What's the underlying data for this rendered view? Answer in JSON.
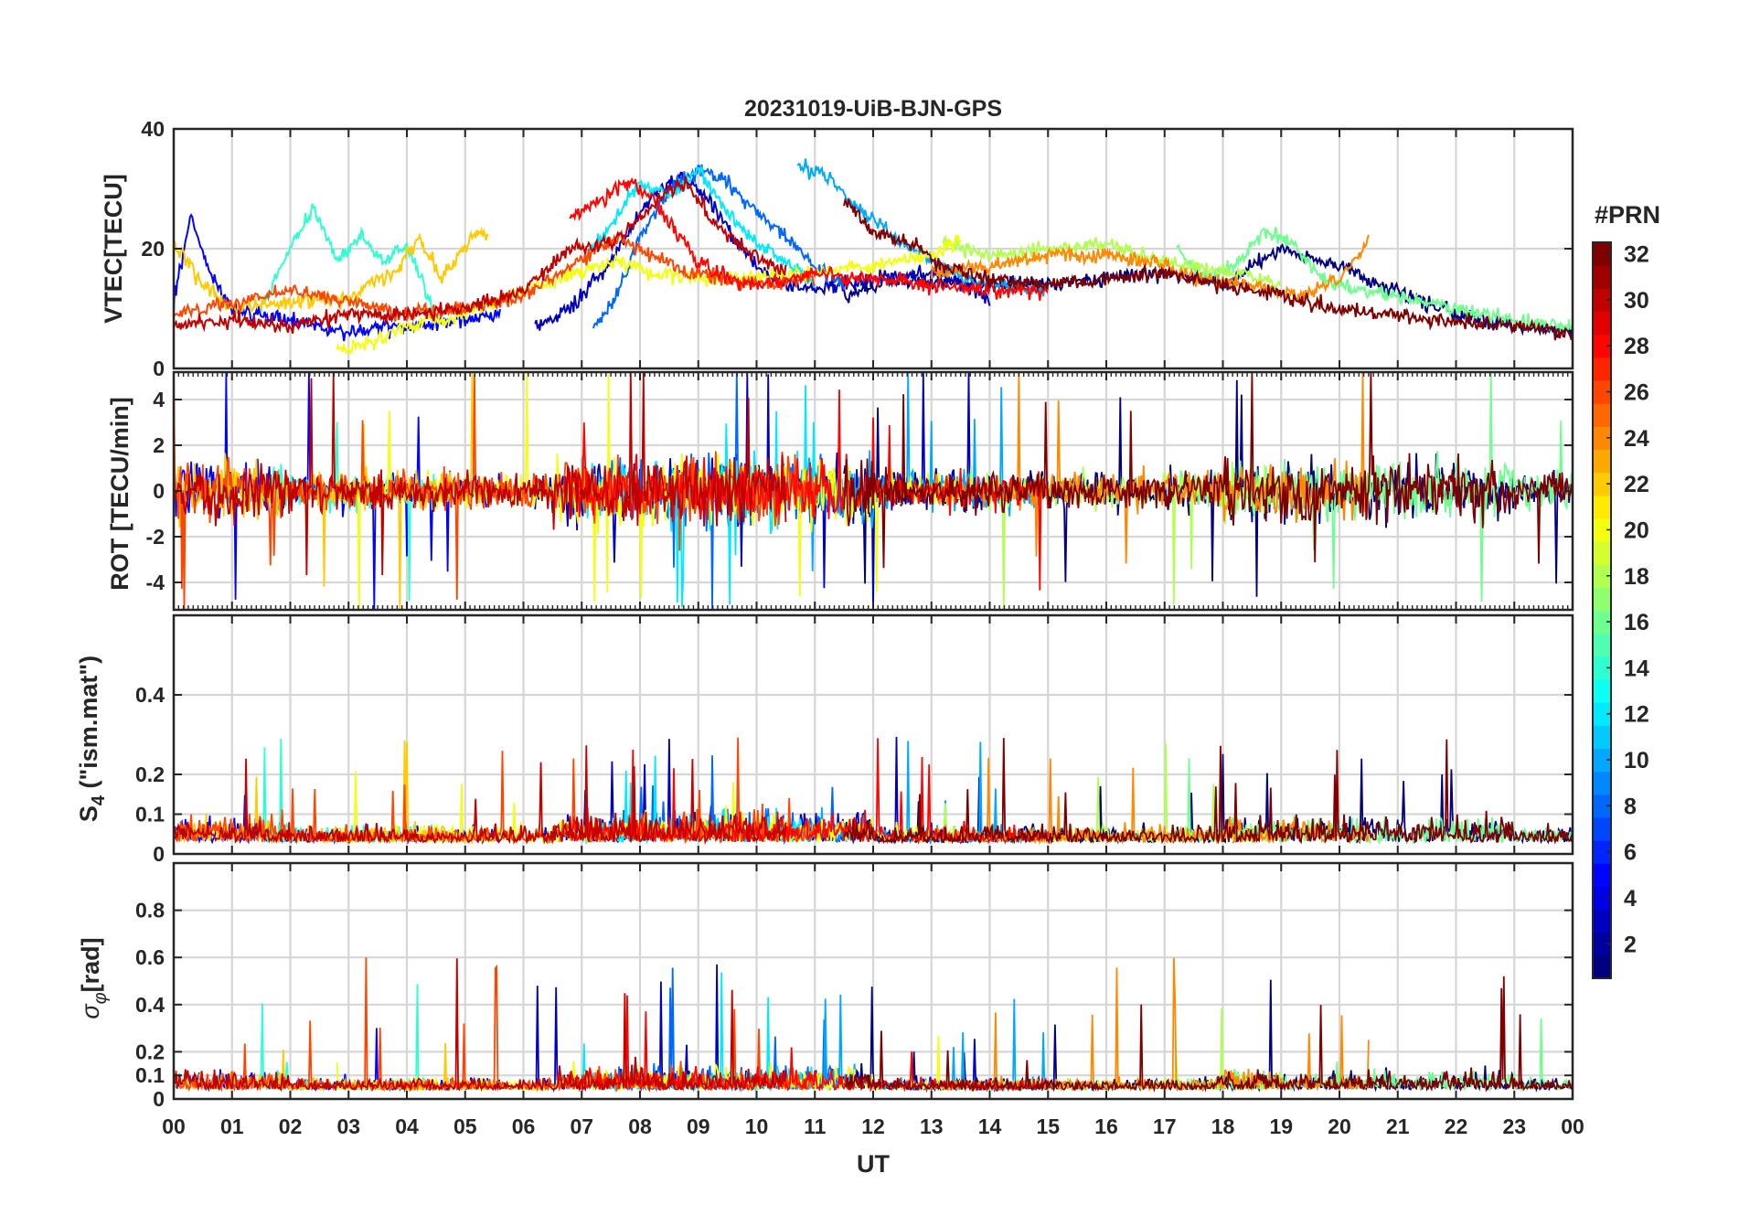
{
  "chart_data": {
    "type": "line",
    "title": "20231019-UiB-BJN-GPS",
    "xlabel": "UT",
    "x_range_hours": [
      0,
      24
    ],
    "x_tick_labels": [
      "00",
      "01",
      "02",
      "03",
      "04",
      "05",
      "06",
      "07",
      "08",
      "09",
      "10",
      "11",
      "12",
      "13",
      "14",
      "15",
      "16",
      "17",
      "18",
      "19",
      "20",
      "21",
      "22",
      "23",
      "00"
    ],
    "colorbar": {
      "label": "#PRN",
      "range": [
        1,
        32
      ],
      "tick_labels": [
        "2",
        "4",
        "6",
        "8",
        "10",
        "12",
        "14",
        "16",
        "18",
        "20",
        "22",
        "24",
        "26",
        "28",
        "30",
        "32"
      ],
      "colormap": "jet"
    },
    "panels": [
      {
        "id": "vtec",
        "ylabel": "VTEC[TECU]",
        "ylim": [
          0,
          40
        ],
        "y_ticks": [
          0,
          20,
          40
        ],
        "y_tick_labels": [
          "0",
          "20",
          "40"
        ],
        "description_values": "Background 5-15 TECU, enhancement up to ~34 TECU between 07 and 12 UT"
      },
      {
        "id": "rot",
        "ylabel": "ROT [TECU/min]",
        "ylim": [
          -5.2,
          5.2
        ],
        "y_ticks": [
          -4,
          -2,
          0,
          2,
          4
        ],
        "y_tick_labels": [
          "-4",
          "-2",
          "0",
          "2",
          "4"
        ]
      },
      {
        "id": "s4",
        "ylabel_main": "S",
        "ylabel_sub": "4",
        "ylabel_tail": " (\"ism.mat\")",
        "ylim": [
          0,
          0.6
        ],
        "y_ticks": [
          0,
          0.1,
          0.2,
          0.4
        ],
        "y_tick_labels": [
          "0",
          "0.1",
          "0.2",
          "0.4"
        ]
      },
      {
        "id": "sigma_phi",
        "ylabel_main": "σ",
        "ylabel_sub": "φ",
        "ylabel_tail": "[rad]",
        "ylim": [
          0,
          1
        ],
        "y_ticks": [
          0,
          0.1,
          0.2,
          0.4,
          0.6,
          0.8
        ],
        "y_tick_labels": [
          "0",
          "0.1",
          "0.2",
          "0.4",
          "0.6",
          "0.8"
        ]
      }
    ],
    "series": [
      {
        "prn": 1,
        "vtec": [
          [
            11.5,
            12
          ],
          [
            12.3,
            15
          ],
          [
            13.5,
            14
          ],
          [
            15,
            14
          ],
          [
            16.8,
            16
          ],
          [
            18,
            14
          ],
          [
            19,
            20
          ],
          [
            20,
            17
          ],
          [
            21,
            13
          ],
          [
            22,
            9
          ],
          [
            23,
            7
          ],
          [
            24,
            6
          ]
        ]
      },
      {
        "prn": 3,
        "vtec": [
          [
            6.2,
            7
          ],
          [
            6.8,
            10
          ],
          [
            7.5,
            18
          ],
          [
            8.2,
            29
          ],
          [
            8.7,
            32
          ],
          [
            9.2,
            28
          ],
          [
            9.6,
            22
          ],
          [
            10.2,
            15
          ],
          [
            11,
            13
          ],
          [
            12,
            15
          ],
          [
            13,
            16
          ],
          [
            14,
            12
          ]
        ]
      },
      {
        "prn": 5,
        "vtec": [
          [
            0,
            11
          ],
          [
            0.3,
            26
          ],
          [
            0.6,
            16
          ],
          [
            1,
            10
          ],
          [
            2,
            8
          ],
          [
            3,
            6
          ],
          [
            4,
            7
          ],
          [
            5,
            8
          ],
          [
            5.6,
            9
          ]
        ]
      },
      {
        "prn": 8,
        "vtec": [
          [
            7.2,
            7
          ],
          [
            7.6,
            12
          ],
          [
            8,
            22
          ],
          [
            8.5,
            30
          ],
          [
            9,
            33
          ],
          [
            9.5,
            31
          ],
          [
            10,
            26
          ],
          [
            10.5,
            22
          ],
          [
            11,
            17
          ],
          [
            11.5,
            14
          ]
        ]
      },
      {
        "prn": 10,
        "vtec": [
          [
            10.7,
            34
          ],
          [
            11.2,
            32
          ],
          [
            11.6,
            28
          ],
          [
            12,
            25
          ],
          [
            12.5,
            21
          ],
          [
            13,
            18
          ],
          [
            13.6,
            15
          ],
          [
            14.2,
            14
          ],
          [
            15,
            13
          ]
        ]
      },
      {
        "prn": 12,
        "vtec": [
          [
            7,
            18
          ],
          [
            7.5,
            24
          ],
          [
            8,
            31
          ],
          [
            8.5,
            29
          ],
          [
            9,
            33
          ],
          [
            9.5,
            26
          ],
          [
            10,
            21
          ],
          [
            10.5,
            18
          ],
          [
            11,
            14
          ]
        ]
      },
      {
        "prn": 14,
        "vtec": [
          [
            1.5,
            10
          ],
          [
            2,
            20
          ],
          [
            2.4,
            27
          ],
          [
            2.8,
            18
          ],
          [
            3.2,
            22
          ],
          [
            3.6,
            18
          ],
          [
            4,
            20
          ],
          [
            4.5,
            9
          ]
        ]
      },
      {
        "prn": 16,
        "vtec": [
          [
            17.2,
            20
          ],
          [
            17.7,
            15
          ],
          [
            18.2,
            17
          ],
          [
            18.7,
            23
          ],
          [
            19.2,
            21
          ],
          [
            19.6,
            16
          ],
          [
            20,
            14
          ],
          [
            21,
            12
          ],
          [
            22,
            10
          ],
          [
            23,
            8
          ],
          [
            24,
            7
          ]
        ]
      },
      {
        "prn": 18,
        "vtec": [
          [
            13.2,
            21
          ],
          [
            14,
            19
          ],
          [
            15,
            20
          ],
          [
            16,
            21
          ],
          [
            16.8,
            18
          ],
          [
            17.5,
            17
          ],
          [
            18.2,
            16
          ],
          [
            19,
            14
          ]
        ]
      },
      {
        "prn": 20,
        "vtec": [
          [
            2.8,
            3
          ],
          [
            3.5,
            5
          ],
          [
            4,
            7
          ],
          [
            5,
            9
          ],
          [
            6,
            13
          ],
          [
            7,
            16
          ],
          [
            7.6,
            18
          ],
          [
            8.2,
            16
          ],
          [
            9,
            15
          ],
          [
            10,
            15
          ],
          [
            11,
            16
          ],
          [
            12,
            17
          ],
          [
            13,
            19
          ],
          [
            13.5,
            22
          ]
        ]
      },
      {
        "prn": 22,
        "vtec": [
          [
            0,
            21
          ],
          [
            0.5,
            14
          ],
          [
            1,
            10
          ],
          [
            2,
            11
          ],
          [
            3,
            12
          ],
          [
            3.8,
            16
          ],
          [
            4.2,
            22
          ],
          [
            4.6,
            15
          ],
          [
            5,
            20
          ],
          [
            5.2,
            23
          ],
          [
            5.4,
            22
          ]
        ]
      },
      {
        "prn": 24,
        "vtec": [
          [
            13,
            16
          ],
          [
            14,
            17
          ],
          [
            15,
            19
          ],
          [
            16,
            19
          ],
          [
            16.8,
            18
          ],
          [
            17.5,
            15
          ],
          [
            18.5,
            14
          ],
          [
            19.3,
            12
          ],
          [
            20,
            15
          ],
          [
            20.5,
            21
          ]
        ]
      },
      {
        "prn": 26,
        "vtec": [
          [
            0,
            9
          ],
          [
            1,
            11
          ],
          [
            2,
            13
          ],
          [
            3,
            11
          ],
          [
            4,
            9
          ],
          [
            5,
            10
          ],
          [
            6,
            12
          ],
          [
            7,
            18
          ],
          [
            7.6,
            22
          ],
          [
            8,
            20
          ],
          [
            8.6,
            17
          ],
          [
            9.2,
            15
          ],
          [
            10,
            14
          ],
          [
            11,
            15
          ]
        ]
      },
      {
        "prn": 28,
        "vtec": [
          [
            6.8,
            25
          ],
          [
            7.3,
            28
          ],
          [
            7.8,
            31
          ],
          [
            8.2,
            29
          ],
          [
            8.6,
            23
          ],
          [
            9,
            18
          ],
          [
            9.5,
            15
          ],
          [
            10,
            14
          ],
          [
            11,
            16
          ],
          [
            12,
            15
          ],
          [
            13,
            14
          ],
          [
            14,
            13
          ],
          [
            15,
            13
          ]
        ]
      },
      {
        "prn": 30,
        "vtec": [
          [
            0,
            7
          ],
          [
            1,
            8
          ],
          [
            2,
            7
          ],
          [
            3,
            9
          ],
          [
            4,
            9
          ],
          [
            5,
            10
          ],
          [
            6,
            13
          ],
          [
            6.8,
            20
          ],
          [
            7.5,
            21
          ],
          [
            8,
            25
          ],
          [
            8.5,
            30
          ],
          [
            8.8,
            31
          ],
          [
            9.2,
            25
          ],
          [
            9.8,
            20
          ],
          [
            10.5,
            16
          ]
        ]
      },
      {
        "prn": 32,
        "vtec": [
          [
            11.5,
            28
          ],
          [
            12,
            23
          ],
          [
            12.6,
            21
          ],
          [
            13.2,
            17
          ],
          [
            14,
            15
          ],
          [
            15,
            14
          ],
          [
            16,
            15
          ],
          [
            17,
            16
          ],
          [
            18,
            14
          ],
          [
            19,
            12
          ],
          [
            20,
            10
          ],
          [
            21,
            9
          ],
          [
            22,
            8
          ],
          [
            23,
            7
          ],
          [
            24,
            6
          ]
        ]
      }
    ]
  }
}
